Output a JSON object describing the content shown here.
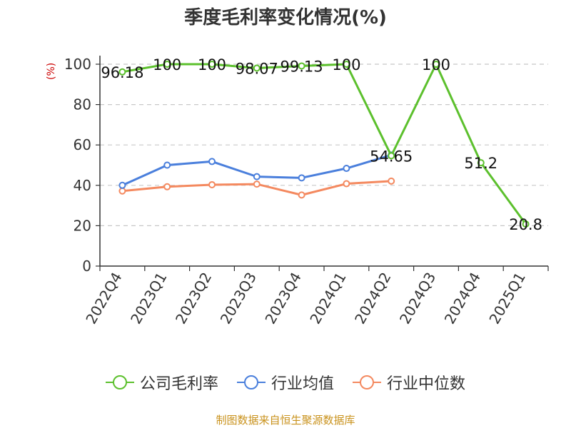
{
  "title": "季度毛利率变化情况(%)",
  "unit_label": "(%)",
  "source": "制图数据来自恒生聚源数据库",
  "colors": {
    "company": "#5cc02d",
    "industry_avg": "#4a7fdc",
    "industry_median": "#f4895f"
  },
  "chart_data": {
    "type": "line",
    "title": "季度毛利率变化情况(%)",
    "ylabel": "(%)",
    "ylim": [
      0,
      100
    ],
    "yticks": [
      0,
      20,
      40,
      60,
      80,
      100
    ],
    "grid": true,
    "legend_position": "bottom",
    "categories": [
      "2022Q4",
      "2023Q1",
      "2023Q2",
      "2023Q3",
      "2023Q4",
      "2024Q1",
      "2024Q2",
      "2024Q3",
      "2024Q4",
      "2025Q1"
    ],
    "series": [
      {
        "name": "公司毛利率",
        "color": "#5cc02d",
        "values": [
          96.18,
          100,
          100,
          98.07,
          99.13,
          100,
          54.65,
          100,
          51.2,
          20.8
        ],
        "labels": [
          "96.18",
          "100",
          "100",
          "98.07",
          "99.13",
          "100",
          "54.65",
          "100",
          "51.2",
          "20.8"
        ]
      },
      {
        "name": "行业均值",
        "color": "#4a7fdc",
        "values": [
          40,
          50,
          51.8,
          44.3,
          43.7,
          48.4,
          55,
          null,
          null,
          null
        ]
      },
      {
        "name": "行业中位数",
        "color": "#f4895f",
        "values": [
          37.2,
          39.3,
          40.3,
          40.6,
          35.2,
          40.8,
          42.1,
          null,
          null,
          null
        ]
      }
    ]
  }
}
